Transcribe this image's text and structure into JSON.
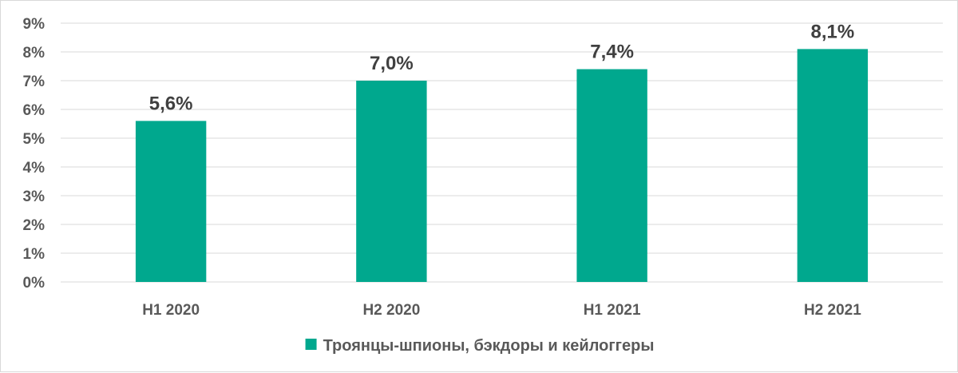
{
  "chart_data": {
    "type": "bar",
    "categories": [
      "H1 2020",
      "H2 2020",
      "H1 2021",
      "H2 2021"
    ],
    "series": [
      {
        "name": "Троянцы-шпионы, бэкдоры и кейлоггеры",
        "values": [
          5.6,
          7.0,
          7.4,
          8.1
        ],
        "data_labels": [
          "5,6%",
          "7,0%",
          "7,4%",
          "8,1%"
        ],
        "color": "#00a88e"
      }
    ],
    "y_ticks": [
      0,
      1,
      2,
      3,
      4,
      5,
      6,
      7,
      8,
      9
    ],
    "y_tick_labels": [
      "0%",
      "1%",
      "2%",
      "3%",
      "4%",
      "5%",
      "6%",
      "7%",
      "8%",
      "9%"
    ],
    "ylim": [
      0,
      9
    ],
    "grid": true,
    "legend_position": "bottom",
    "gridline_color": "#d9d9d9"
  }
}
